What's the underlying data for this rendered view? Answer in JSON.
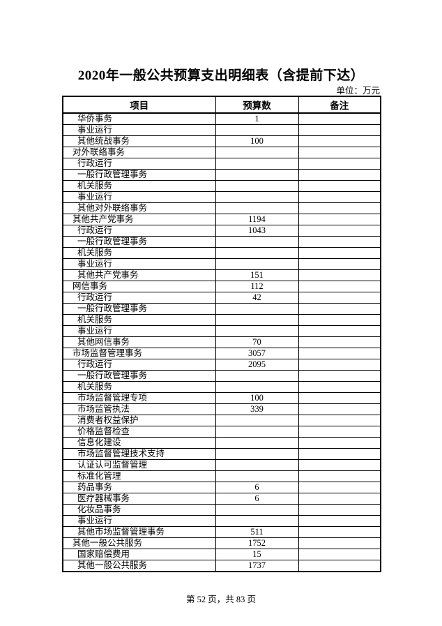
{
  "page": {
    "title": "2020年一般公共预算支出明细表（含提前下达）",
    "unit_label": "单位：万元",
    "footer": "第 52 页，共 83 页",
    "background_color": "#ffffff",
    "text_color": "#000000",
    "border_color": "#000000"
  },
  "table": {
    "columns": [
      "项目",
      "预算数",
      "备注"
    ],
    "rows": [
      {
        "item": "华侨事务",
        "budget": "1",
        "note": "",
        "level": 2
      },
      {
        "item": "事业运行",
        "budget": "",
        "note": "",
        "level": 2
      },
      {
        "item": "其他统战事务",
        "budget": "100",
        "note": "",
        "level": 2
      },
      {
        "item": "对外联络事务",
        "budget": "",
        "note": "",
        "level": 1
      },
      {
        "item": "行政运行",
        "budget": "",
        "note": "",
        "level": 2
      },
      {
        "item": "一般行政管理事务",
        "budget": "",
        "note": "",
        "level": 2
      },
      {
        "item": "机关服务",
        "budget": "",
        "note": "",
        "level": 2
      },
      {
        "item": "事业运行",
        "budget": "",
        "note": "",
        "level": 2
      },
      {
        "item": "其他对外联络事务",
        "budget": "",
        "note": "",
        "level": 2
      },
      {
        "item": "其他共产党事务",
        "budget": "1194",
        "note": "",
        "level": 1
      },
      {
        "item": "行政运行",
        "budget": "1043",
        "note": "",
        "level": 2
      },
      {
        "item": "一般行政管理事务",
        "budget": "",
        "note": "",
        "level": 2
      },
      {
        "item": "机关服务",
        "budget": "",
        "note": "",
        "level": 2
      },
      {
        "item": "事业运行",
        "budget": "",
        "note": "",
        "level": 2
      },
      {
        "item": "其他共产党事务",
        "budget": "151",
        "note": "",
        "level": 2
      },
      {
        "item": "网信事务",
        "budget": "112",
        "note": "",
        "level": 1
      },
      {
        "item": "行政运行",
        "budget": "42",
        "note": "",
        "level": 2
      },
      {
        "item": "一般行政管理事务",
        "budget": "",
        "note": "",
        "level": 2
      },
      {
        "item": "机关服务",
        "budget": "",
        "note": "",
        "level": 2
      },
      {
        "item": "事业运行",
        "budget": "",
        "note": "",
        "level": 2
      },
      {
        "item": "其他网信事务",
        "budget": "70",
        "note": "",
        "level": 2
      },
      {
        "item": "市场监督管理事务",
        "budget": "3057",
        "note": "",
        "level": 1
      },
      {
        "item": "行政运行",
        "budget": "2095",
        "note": "",
        "level": 2
      },
      {
        "item": "一般行政管理事务",
        "budget": "",
        "note": "",
        "level": 2
      },
      {
        "item": "机关服务",
        "budget": "",
        "note": "",
        "level": 2
      },
      {
        "item": "市场监督管理专项",
        "budget": "100",
        "note": "",
        "level": 2
      },
      {
        "item": "市场监管执法",
        "budget": "339",
        "note": "",
        "level": 2
      },
      {
        "item": "消费者权益保护",
        "budget": "",
        "note": "",
        "level": 2
      },
      {
        "item": "价格监督检查",
        "budget": "",
        "note": "",
        "level": 2
      },
      {
        "item": "信息化建设",
        "budget": "",
        "note": "",
        "level": 2
      },
      {
        "item": "市场监督管理技术支持",
        "budget": "",
        "note": "",
        "level": 2
      },
      {
        "item": "认证认可监督管理",
        "budget": "",
        "note": "",
        "level": 2
      },
      {
        "item": "标准化管理",
        "budget": "",
        "note": "",
        "level": 2
      },
      {
        "item": "药品事务",
        "budget": "6",
        "note": "",
        "level": 2
      },
      {
        "item": "医疗器械事务",
        "budget": "6",
        "note": "",
        "level": 2
      },
      {
        "item": "化妆品事务",
        "budget": "",
        "note": "",
        "level": 2
      },
      {
        "item": "事业运行",
        "budget": "",
        "note": "",
        "level": 2
      },
      {
        "item": "其他市场监督管理事务",
        "budget": "511",
        "note": "",
        "level": 2
      },
      {
        "item": "其他一般公共服务",
        "budget": "1752",
        "note": "",
        "level": 1
      },
      {
        "item": "国家赔偿费用",
        "budget": "15",
        "note": "",
        "level": 2
      },
      {
        "item": "其他一般公共服务",
        "budget": "1737",
        "note": "",
        "level": 2
      }
    ]
  }
}
